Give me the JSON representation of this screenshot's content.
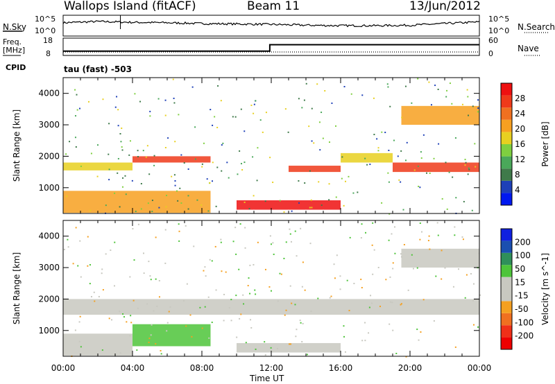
{
  "header": {
    "station": "Wallops Island (fitACF)",
    "beam": "Beam 11",
    "date": "13/Jun/2012"
  },
  "top_strip": {
    "nsky_label": "N.Sky",
    "nsky_ticks": [
      "10^5",
      "10^0"
    ],
    "nsearch_label": "N.Search",
    "nsearch_ticks": [
      "10^5",
      "10^0"
    ],
    "freq_label": "Freq.",
    "freq_unit": "[MHz]",
    "freq_ticks": [
      "18",
      "8"
    ],
    "nave_label": "Nave",
    "nave_ticks": [
      "60",
      "0"
    ],
    "cpid_label": "CPID",
    "cpid_value": "tau (fast) -503"
  },
  "time_axis": {
    "ticks": [
      "00:00",
      "04:00",
      "08:00",
      "12:00",
      "16:00",
      "20:00",
      "00:00"
    ],
    "label": "Time UT"
  },
  "colors": {
    "power_scale": [
      "#0018f0",
      "#1e40b8",
      "#3f7a4a",
      "#4aa85a",
      "#7fcf40",
      "#e8d020",
      "#f7a020",
      "#f07020",
      "#ef3a1a",
      "#ee1010"
    ],
    "velocity_scale": [
      "#ee0000",
      "#f03018",
      "#f07020",
      "#f5a020",
      "#c8c8c0",
      "#c8c8c0",
      "#4ec43a",
      "#2f8f5a",
      "#1a4fb0",
      "#1020e0"
    ]
  },
  "chart_data": [
    {
      "type": "line",
      "title": "Wallops Island (fitACF)",
      "xlabel": "Time UT",
      "series": [
        {
          "name": "N.Sky",
          "x": [
            "00:00",
            "02:00",
            "04:00",
            "06:00",
            "08:00",
            "10:00",
            "12:00",
            "14:00",
            "16:00",
            "18:00",
            "20:00",
            "22:00",
            "24:00"
          ],
          "values": [
            3.2,
            3.5,
            3.3,
            3.2,
            3.0,
            2.9,
            2.8,
            2.6,
            2.5,
            2.5,
            2.6,
            3.0,
            3.4
          ]
        },
        {
          "name": "Freq.",
          "x": [
            "00:00",
            "11:55",
            "11:55",
            "24:00"
          ],
          "values": [
            10.5,
            10.5,
            14.2,
            14.2
          ]
        }
      ]
    },
    {
      "type": "heatmap",
      "ylabel": "Slant Range [km]",
      "colorbar_label": "Power [dB]",
      "colorbar_ticks": [
        4,
        8,
        12,
        16,
        20,
        24,
        28
      ],
      "zlim": [
        0,
        30
      ],
      "ylim": [
        180,
        4500
      ],
      "yticks": [
        1000,
        2000,
        3000,
        4000
      ],
      "xlim": [
        "00:00",
        "24:00"
      ],
      "bands": [
        {
          "from_hr": 0.0,
          "to_hr": 4.0,
          "range_km": [
            1550,
            1800
          ],
          "power_db": 16
        },
        {
          "from_hr": 4.0,
          "to_hr": 8.5,
          "range_km": [
            1800,
            2000
          ],
          "power_db": 26
        },
        {
          "from_hr": 0.0,
          "to_hr": 8.5,
          "range_km": [
            200,
            900
          ],
          "power_db": 20
        },
        {
          "from_hr": 10.0,
          "to_hr": 16.0,
          "range_km": [
            300,
            600
          ],
          "power_db": 28
        },
        {
          "from_hr": 13.0,
          "to_hr": 16.0,
          "range_km": [
            1500,
            1700
          ],
          "power_db": 24
        },
        {
          "from_hr": 19.0,
          "to_hr": 24.0,
          "range_km": [
            1500,
            1800
          ],
          "power_db": 24
        },
        {
          "from_hr": 19.5,
          "to_hr": 24.0,
          "range_km": [
            3000,
            3600
          ],
          "power_db": 18
        },
        {
          "from_hr": 16.0,
          "to_hr": 19.0,
          "range_km": [
            1800,
            2100
          ],
          "power_db": 16
        }
      ]
    },
    {
      "type": "heatmap",
      "ylabel": "Slant Range [km]",
      "colorbar_label": "Velocity [m s^-1]",
      "colorbar_ticks": [
        -200,
        -100,
        -50,
        -15,
        15,
        50,
        100,
        200
      ],
      "zlim": [
        -250,
        250
      ],
      "ylim": [
        180,
        4500
      ],
      "yticks": [
        1000,
        2000,
        3000,
        4000
      ],
      "xlim": [
        "00:00",
        "24:00"
      ],
      "bands": [
        {
          "from_hr": 0.0,
          "to_hr": 24.0,
          "range_km": [
            1500,
            2000
          ],
          "velocity": 0
        },
        {
          "from_hr": 0.0,
          "to_hr": 4.0,
          "range_km": [
            200,
            900
          ],
          "velocity": 0
        },
        {
          "from_hr": 4.0,
          "to_hr": 8.5,
          "range_km": [
            500,
            1200
          ],
          "velocity": 30
        },
        {
          "from_hr": 10.0,
          "to_hr": 16.0,
          "range_km": [
            300,
            600
          ],
          "velocity": 0
        },
        {
          "from_hr": 19.5,
          "to_hr": 24.0,
          "range_km": [
            3000,
            3600
          ],
          "velocity": 0
        }
      ]
    }
  ]
}
